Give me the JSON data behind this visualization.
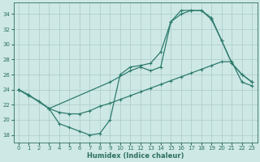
{
  "xlabel": "Humidex (Indice chaleur)",
  "background_color": "#cde8e5",
  "grid_color": "#b0d0cc",
  "line_color": "#2e7b6e",
  "xlim": [
    -0.5,
    23.5
  ],
  "ylim": [
    17,
    35.5
  ],
  "xticks": [
    0,
    1,
    2,
    3,
    4,
    5,
    6,
    7,
    8,
    9,
    10,
    11,
    12,
    13,
    14,
    15,
    16,
    17,
    18,
    19,
    20,
    21,
    22,
    23
  ],
  "yticks": [
    18,
    20,
    22,
    24,
    26,
    28,
    30,
    32,
    34
  ],
  "line1_x": [
    0,
    1,
    3,
    4,
    5,
    6,
    7,
    8,
    9,
    10,
    11,
    12,
    13,
    14,
    15,
    16,
    17,
    18,
    19,
    20,
    21,
    22,
    23
  ],
  "line1_y": [
    24,
    23.3,
    21.5,
    19.5,
    19.0,
    18.5,
    18.0,
    18.2,
    20.0,
    26.0,
    27.0,
    27.2,
    27.5,
    29.0,
    33.0,
    34.0,
    34.5,
    34.5,
    33.5,
    30.5,
    27.5,
    26.0,
    25.0
  ],
  "line2_x": [
    0,
    1,
    2,
    3,
    4,
    5,
    6,
    7,
    8,
    9,
    10,
    11,
    12,
    13,
    14,
    15,
    16,
    17,
    18,
    19,
    20,
    21,
    22,
    23
  ],
  "line2_y": [
    24.0,
    23.2,
    22.5,
    21.5,
    21.0,
    20.8,
    20.8,
    21.2,
    21.8,
    22.2,
    22.7,
    23.2,
    23.7,
    24.2,
    24.7,
    25.2,
    25.7,
    26.2,
    26.7,
    27.2,
    27.7,
    27.7,
    25.0,
    24.5
  ],
  "line3_x": [
    0,
    1,
    3,
    9,
    11,
    12,
    13,
    14,
    15,
    16,
    17,
    18,
    19,
    20,
    21,
    22,
    23
  ],
  "line3_y": [
    24.0,
    23.3,
    21.5,
    25.0,
    26.5,
    27.0,
    26.5,
    27.0,
    33.0,
    34.5,
    34.5,
    34.5,
    33.3,
    30.5,
    27.5,
    26.0,
    25.0
  ]
}
